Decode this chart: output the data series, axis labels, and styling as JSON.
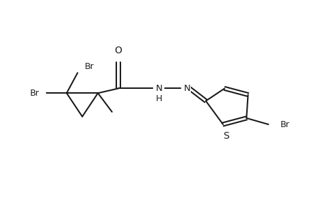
{
  "background_color": "#ffffff",
  "line_color": "#1a1a1a",
  "line_width": 1.5,
  "font_size": 9,
  "figsize": [
    4.6,
    3.0
  ],
  "dpi": 100,
  "xlim": [
    0,
    10
  ],
  "ylim": [
    0,
    6.5
  ]
}
